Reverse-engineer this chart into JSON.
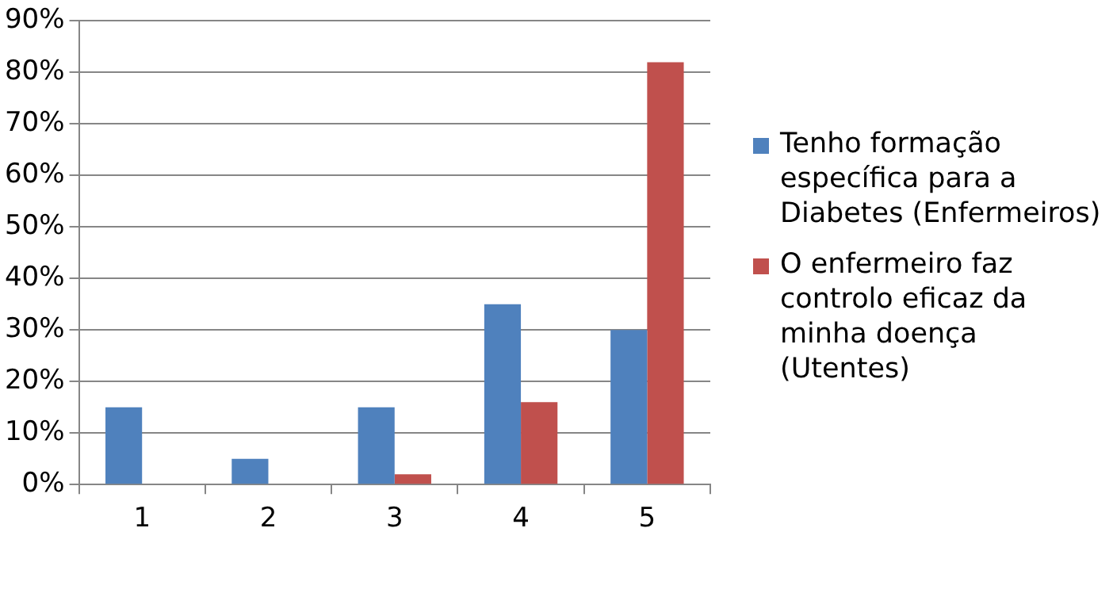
{
  "chart_data": {
    "type": "bar",
    "categories": [
      "1",
      "2",
      "3",
      "4",
      "5"
    ],
    "series": [
      {
        "name": "Tenho formação específica para a Diabetes (Enfermeiros)",
        "color": "#4f81bd",
        "values": [
          15,
          5,
          15,
          35,
          30
        ]
      },
      {
        "name": "O enfermeiro faz controlo eficaz da minha doença (Utentes)",
        "color": "#c0504d",
        "values": [
          0,
          0,
          2,
          16,
          82
        ]
      }
    ],
    "ylim": [
      0,
      90
    ],
    "yticks": [
      {
        "value": 0,
        "label": "0%"
      },
      {
        "value": 10,
        "label": "10%"
      },
      {
        "value": 20,
        "label": "20%"
      },
      {
        "value": 30,
        "label": "30%"
      },
      {
        "value": 40,
        "label": "40%"
      },
      {
        "value": 50,
        "label": "50%"
      },
      {
        "value": 60,
        "label": "60%"
      },
      {
        "value": 70,
        "label": "70%"
      },
      {
        "value": 80,
        "label": "80%"
      },
      {
        "value": 90,
        "label": "90%"
      }
    ],
    "grid": "y",
    "legend": "right"
  }
}
